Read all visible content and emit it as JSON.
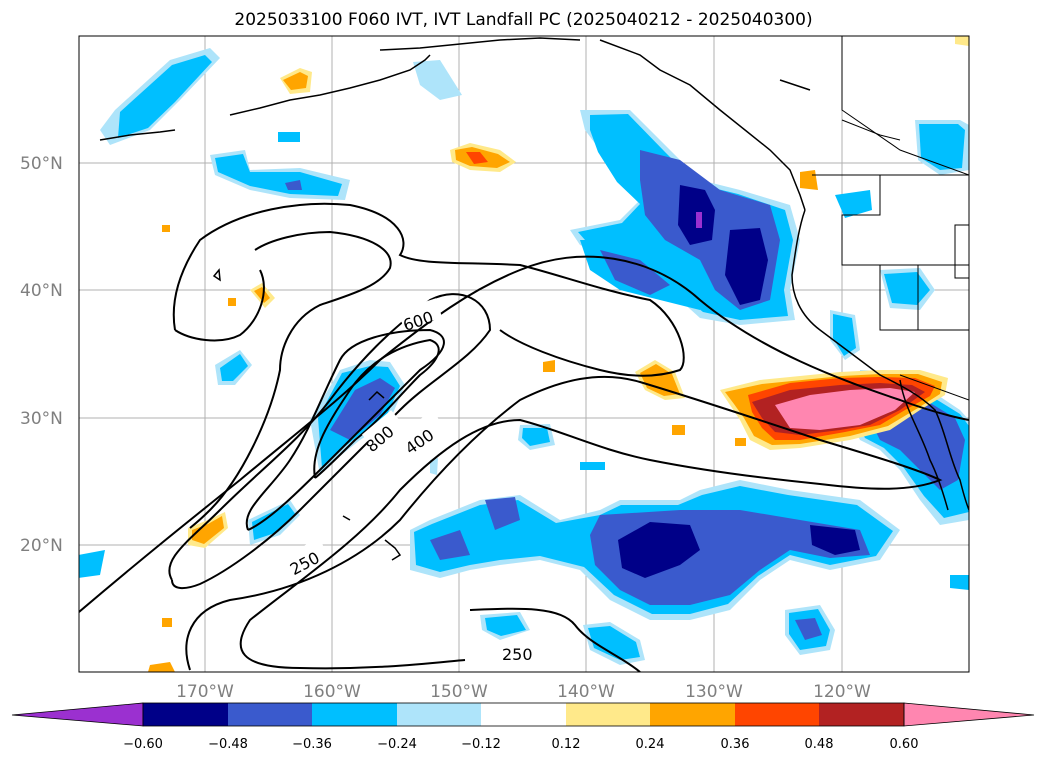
{
  "title": "2025033100 F060 IVT, IVT Landfall PC (2025040212 - 2025040300)",
  "map": {
    "lat_labels": [
      "50°N",
      "40°N",
      "30°N",
      "20°N"
    ],
    "lon_labels": [
      "170°W",
      "160°W",
      "150°W",
      "140°W",
      "130°W",
      "120°W"
    ],
    "contour_labels": [
      "600",
      "800",
      "400",
      "250",
      "250"
    ],
    "contour_levels": [
      250,
      400,
      600,
      800
    ]
  },
  "colorbar": {
    "ticks": [
      "−0.60",
      "−0.48",
      "−0.36",
      "−0.24",
      "−0.12",
      "0.12",
      "0.24",
      "0.36",
      "0.48",
      "0.60"
    ],
    "colors": [
      "#9b30d0",
      "#000088",
      "#3a5acd",
      "#00bfff",
      "#aee4fa",
      "#ffffff",
      "#ffe98a",
      "#ffa500",
      "#ff4500",
      "#b22222",
      "#ff86b0"
    ]
  }
}
